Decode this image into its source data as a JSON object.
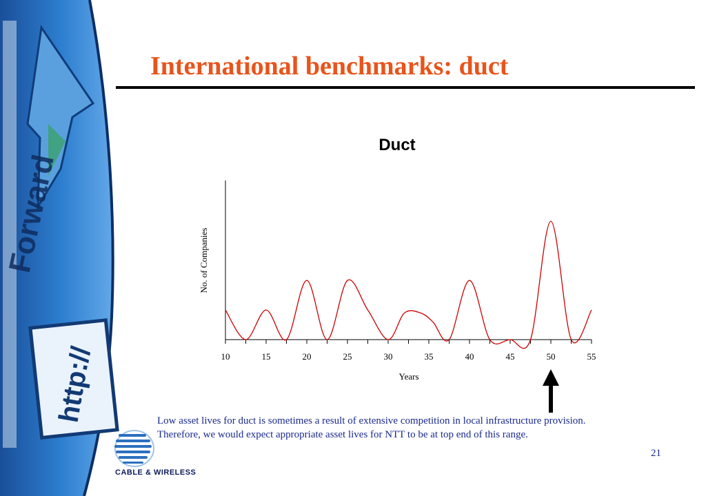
{
  "slide": {
    "title": "International benchmarks: duct",
    "caption_line1": "Low asset lives for duct is sometimes a result of extensive competition in local infrastructure provision.",
    "caption_line2": "Therefore, we would expect appropriate asset lives for NTT to be at top end of this range.",
    "page_number": "21"
  },
  "sidebar": {
    "forward_label": "Forward",
    "url_label": "http://"
  },
  "logo": {
    "text": "CABLE & WIRELESS"
  },
  "colors": {
    "title": "#e8541b",
    "caption": "#1a2a8c",
    "series": "#cc0000",
    "sidebar_blue": "#1e6fbf"
  },
  "chart_data": {
    "type": "line",
    "title": "Duct",
    "xlabel": "Years",
    "ylabel": "No. of Companies",
    "xlim": [
      10,
      55
    ],
    "ylim": [
      0,
      5
    ],
    "xticks": [
      10,
      15,
      20,
      25,
      30,
      35,
      40,
      45,
      50,
      55
    ],
    "series": [
      {
        "x": [
          10,
          12.5,
          15,
          17.5,
          20,
          22.5,
          25,
          27.5,
          30,
          32,
          34,
          35.5,
          37.5,
          40,
          42.5,
          45,
          47.5,
          50,
          52.5,
          55
        ],
        "y": [
          1,
          0,
          1,
          0,
          2,
          0,
          2,
          1,
          0,
          0.9,
          0.9,
          0.6,
          0,
          2,
          0,
          0,
          0,
          4,
          0,
          1
        ]
      }
    ],
    "annotation": {
      "type": "arrow",
      "x": 50
    }
  }
}
